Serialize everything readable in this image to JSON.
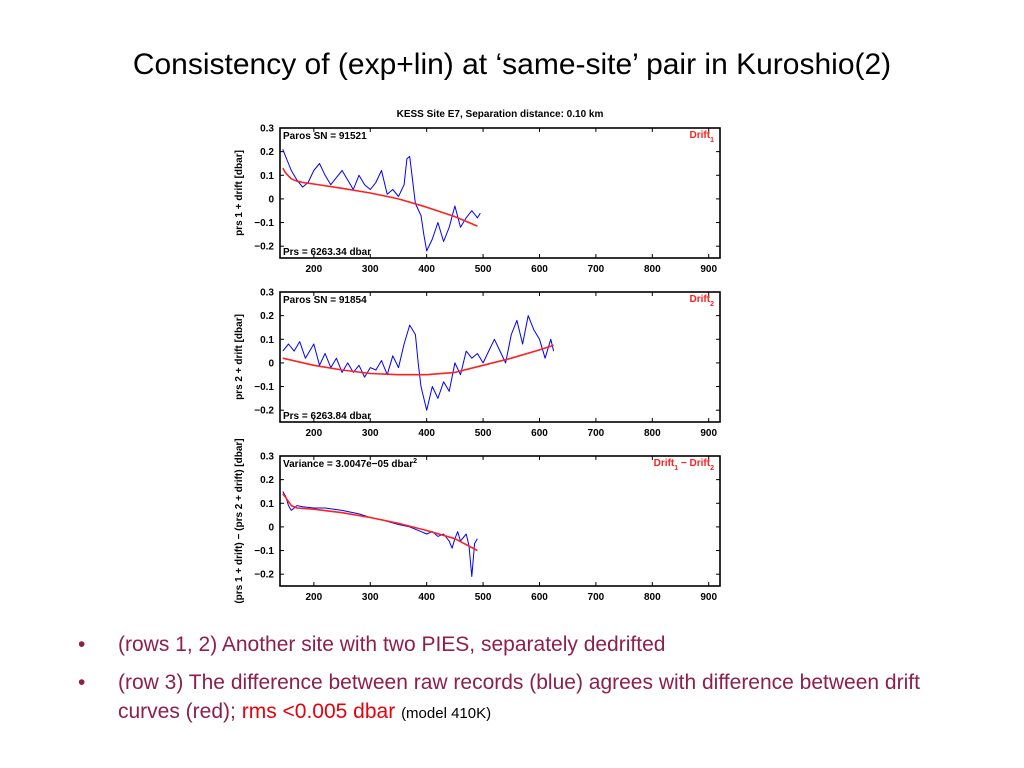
{
  "slide": {
    "title": "Consistency of (exp+lin) at ‘same-site’ pair in Kuroshio(2)",
    "figure_title": "KESS Site E7, Separation distance: 0.10 km"
  },
  "bullets": [
    {
      "marker": "•",
      "text": "(rows 1, 2)  Another site with two PIES, separately dedrifted"
    },
    {
      "marker": "•",
      "text": "(row 3) The difference between raw records (blue) agrees with difference between drift curves (red); ",
      "highlight": "rms <0.005 dbar",
      "note": "(model 410K)"
    }
  ],
  "colors": {
    "raw": "#0000ff",
    "drift": "#ff2020",
    "bullet_text": "#8e1f4a",
    "highlight": "#e8000b"
  },
  "chart_data": [
    {
      "type": "line",
      "ylabel": "prs 1 + drift [dbar]",
      "xlim": [
        140,
        920
      ],
      "ylim": [
        -0.25,
        0.3
      ],
      "xticks": [
        200,
        300,
        400,
        500,
        600,
        700,
        800,
        900
      ],
      "yticks": [
        0.3,
        0.2,
        0.1,
        0,
        -0.1,
        -0.2
      ],
      "ytick_labels": [
        "0.3",
        "0.2",
        "0.1",
        "0",
        "−0.1",
        "−0.2"
      ],
      "annotation_top": "Paros SN = 91521",
      "annotation_bottom": "Prs = 6263.34 dbar",
      "legend_label": "Drift",
      "legend_sub": "1",
      "series": [
        {
          "role": "raw",
          "x": [
            145,
            150,
            160,
            170,
            180,
            190,
            200,
            210,
            220,
            230,
            240,
            250,
            260,
            270,
            280,
            290,
            300,
            310,
            320,
            330,
            340,
            350,
            360,
            365,
            370,
            380,
            390,
            395,
            400,
            410,
            420,
            430,
            440,
            450,
            460,
            470,
            480,
            490,
            495
          ],
          "y": [
            0.21,
            0.18,
            0.12,
            0.08,
            0.05,
            0.07,
            0.12,
            0.15,
            0.1,
            0.06,
            0.09,
            0.12,
            0.08,
            0.04,
            0.1,
            0.06,
            0.04,
            0.07,
            0.12,
            0.02,
            0.04,
            0.01,
            0.06,
            0.17,
            0.18,
            -0.02,
            -0.07,
            -0.15,
            -0.22,
            -0.17,
            -0.1,
            -0.18,
            -0.12,
            -0.03,
            -0.12,
            -0.08,
            -0.05,
            -0.08,
            -0.06
          ]
        },
        {
          "role": "drift",
          "x": [
            145,
            150,
            160,
            170,
            180,
            200,
            250,
            300,
            350,
            400,
            450,
            490
          ],
          "y": [
            0.13,
            0.11,
            0.085,
            0.075,
            0.07,
            0.063,
            0.045,
            0.025,
            0.0,
            -0.035,
            -0.075,
            -0.115
          ]
        }
      ]
    },
    {
      "type": "line",
      "ylabel": "prs 2 + drift [dbar]",
      "xlim": [
        140,
        920
      ],
      "ylim": [
        -0.25,
        0.3
      ],
      "xticks": [
        200,
        300,
        400,
        500,
        600,
        700,
        800,
        900
      ],
      "yticks": [
        0.3,
        0.2,
        0.1,
        0,
        -0.1,
        -0.2
      ],
      "ytick_labels": [
        "0.3",
        "0.2",
        "0.1",
        "0",
        "−0.1",
        "−0.2"
      ],
      "annotation_top": "Paros SN = 91854",
      "annotation_bottom": "Prs = 6263.84 dbar",
      "legend_label": "Drift",
      "legend_sub": "2",
      "series": [
        {
          "role": "raw",
          "x": [
            145,
            155,
            165,
            175,
            185,
            200,
            210,
            220,
            230,
            240,
            250,
            260,
            270,
            280,
            290,
            300,
            310,
            320,
            330,
            340,
            350,
            360,
            370,
            380,
            385,
            390,
            400,
            410,
            420,
            430,
            440,
            450,
            460,
            470,
            480,
            490,
            500,
            510,
            520,
            530,
            540,
            550,
            560,
            570,
            580,
            590,
            600,
            610,
            620,
            625
          ],
          "y": [
            0.05,
            0.08,
            0.05,
            0.09,
            0.02,
            0.08,
            -0.01,
            0.04,
            -0.02,
            0.02,
            -0.04,
            0.0,
            -0.04,
            -0.01,
            -0.06,
            -0.02,
            -0.03,
            0.01,
            -0.05,
            0.03,
            -0.02,
            0.08,
            0.16,
            0.12,
            0.0,
            -0.1,
            -0.2,
            -0.1,
            -0.15,
            -0.08,
            -0.12,
            0.0,
            -0.05,
            0.05,
            0.02,
            0.04,
            0.0,
            0.05,
            0.1,
            0.05,
            0.0,
            0.12,
            0.18,
            0.08,
            0.2,
            0.14,
            0.1,
            0.02,
            0.1,
            0.05
          ]
        },
        {
          "role": "drift",
          "x": [
            145,
            200,
            250,
            300,
            350,
            400,
            450,
            500,
            550,
            600,
            625
          ],
          "y": [
            0.02,
            -0.01,
            -0.03,
            -0.045,
            -0.05,
            -0.05,
            -0.04,
            -0.01,
            0.02,
            0.055,
            0.075
          ]
        }
      ]
    },
    {
      "type": "line",
      "ylabel": "(prs 1 + drift) − (prs 2 + drift) [dbar]",
      "xlim": [
        140,
        920
      ],
      "ylim": [
        -0.25,
        0.3
      ],
      "xticks": [
        200,
        300,
        400,
        500,
        600,
        700,
        800,
        900
      ],
      "yticks": [
        0.3,
        0.2,
        0.1,
        0,
        -0.1,
        -0.2
      ],
      "ytick_labels": [
        "0.3",
        "0.2",
        "0.1",
        "0",
        "−0.1",
        "−0.2"
      ],
      "annotation_top": "Variance =  3.0047e−05 dbar",
      "annotation_top_sup": "2",
      "annotation_bottom": "",
      "legend_label": "Drift",
      "legend_sub": "1",
      "legend_label2": " − Drift",
      "legend_sub2": "2",
      "series": [
        {
          "role": "raw",
          "x": [
            145,
            150,
            155,
            160,
            170,
            180,
            200,
            220,
            250,
            280,
            300,
            320,
            350,
            370,
            390,
            400,
            410,
            420,
            430,
            440,
            445,
            450,
            455,
            460,
            470,
            475,
            480,
            485,
            490
          ],
          "y": [
            0.15,
            0.13,
            0.09,
            0.07,
            0.09,
            0.085,
            0.08,
            0.08,
            0.07,
            0.055,
            0.04,
            0.03,
            0.01,
            0.0,
            -0.02,
            -0.03,
            -0.02,
            -0.04,
            -0.03,
            -0.06,
            -0.09,
            -0.05,
            -0.02,
            -0.06,
            -0.03,
            -0.08,
            -0.21,
            -0.07,
            -0.05
          ]
        },
        {
          "role": "drift",
          "x": [
            145,
            150,
            160,
            170,
            200,
            250,
            300,
            350,
            400,
            450,
            490
          ],
          "y": [
            0.14,
            0.125,
            0.09,
            0.08,
            0.075,
            0.06,
            0.04,
            0.015,
            -0.015,
            -0.05,
            -0.1
          ]
        }
      ]
    }
  ]
}
